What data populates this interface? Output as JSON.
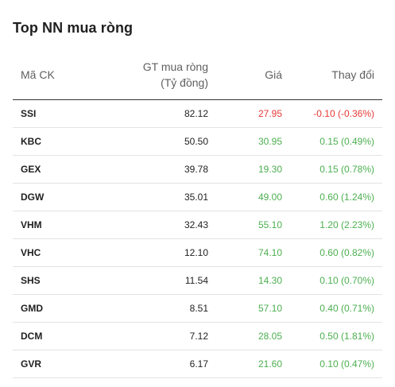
{
  "title": "Top NN mua ròng",
  "headers": {
    "code": "Mã CK",
    "gt_line1": "GT mua ròng",
    "gt_line2": "(Tỷ đồng)",
    "price": "Giá",
    "change": "Thay đổi"
  },
  "colors": {
    "up": "#4caf50",
    "down": "#e53935"
  },
  "rows": [
    {
      "code": "SSI",
      "gt": "82.12",
      "price": "27.95",
      "change": "-0.10 (-0.36%)",
      "trend": "down"
    },
    {
      "code": "KBC",
      "gt": "50.50",
      "price": "30.95",
      "change": "0.15 (0.49%)",
      "trend": "up"
    },
    {
      "code": "GEX",
      "gt": "39.78",
      "price": "19.30",
      "change": "0.15 (0.78%)",
      "trend": "up"
    },
    {
      "code": "DGW",
      "gt": "35.01",
      "price": "49.00",
      "change": "0.60 (1.24%)",
      "trend": "up"
    },
    {
      "code": "VHM",
      "gt": "32.43",
      "price": "55.10",
      "change": "1.20 (2.23%)",
      "trend": "up"
    },
    {
      "code": "VHC",
      "gt": "12.10",
      "price": "74.10",
      "change": "0.60 (0.82%)",
      "trend": "up"
    },
    {
      "code": "SHS",
      "gt": "11.54",
      "price": "14.30",
      "change": "0.10 (0.70%)",
      "trend": "up"
    },
    {
      "code": "GMD",
      "gt": "8.51",
      "price": "57.10",
      "change": "0.40 (0.71%)",
      "trend": "up"
    },
    {
      "code": "DCM",
      "gt": "7.12",
      "price": "28.05",
      "change": "0.50 (1.81%)",
      "trend": "up"
    },
    {
      "code": "GVR",
      "gt": "6.17",
      "price": "21.60",
      "change": "0.10 (0.47%)",
      "trend": "up"
    }
  ]
}
